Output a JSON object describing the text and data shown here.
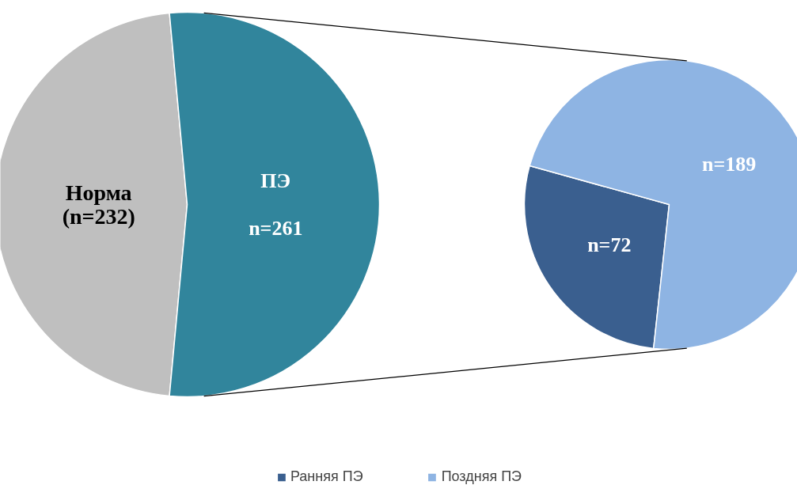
{
  "chart_data": [
    {
      "type": "pie",
      "categories": [
        "Норма",
        "ПЭ"
      ],
      "values": [
        232,
        261
      ],
      "colors": [
        "#bfbfbf",
        "#31859c"
      ],
      "value_labels": [
        "(n=232)",
        "n=261"
      ]
    },
    {
      "type": "pie",
      "categories": [
        "Ранняя ПЭ",
        "Поздняя ПЭ"
      ],
      "values": [
        72,
        189
      ],
      "colors": [
        "#3a5f8f",
        "#8eb4e3"
      ],
      "value_labels": [
        "n=72",
        "n=189"
      ],
      "legend": "bottom"
    }
  ]
}
